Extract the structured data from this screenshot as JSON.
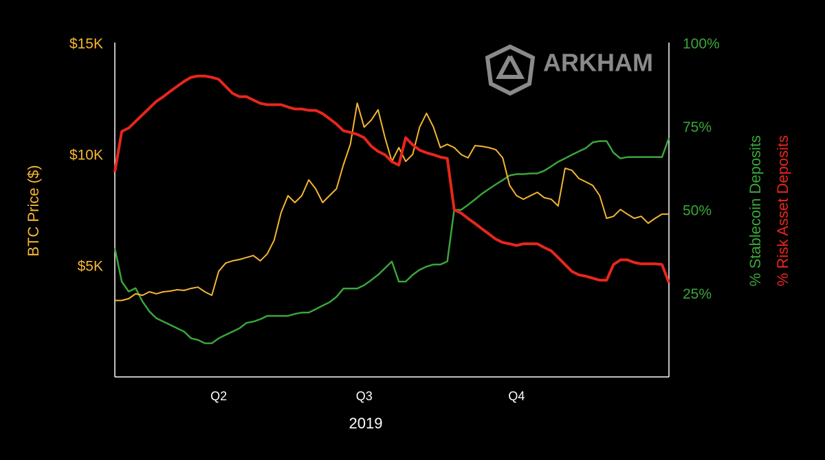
{
  "chart_data": {
    "type": "line",
    "watermark": "ARKHAM",
    "x_label": "2019",
    "categories": [
      null,
      null,
      null,
      null,
      null,
      null,
      null,
      null,
      null,
      null,
      null,
      null,
      null,
      null,
      null,
      "Q2",
      null,
      null,
      null,
      null,
      null,
      null,
      null,
      null,
      null,
      null,
      null,
      null,
      null,
      null,
      null,
      null,
      null,
      null,
      null,
      null,
      "Q3",
      null,
      null,
      null,
      null,
      null,
      null,
      null,
      null,
      null,
      null,
      null,
      null,
      null,
      null,
      null,
      null,
      null,
      null,
      null,
      null,
      null,
      "Q4",
      null,
      null,
      null,
      null,
      null,
      null,
      null,
      null,
      null,
      null,
      null,
      null,
      null,
      null,
      null,
      null,
      null,
      null,
      null,
      null,
      null,
      null
    ],
    "ylim": [
      0,
      15000
    ],
    "yticks": [
      {
        "value": 5000,
        "label": "$5K"
      },
      {
        "value": 10000,
        "label": "$10K"
      },
      {
        "value": 15000,
        "label": "$15K"
      }
    ],
    "y2lim": [
      0,
      100
    ],
    "y2ticks": [
      {
        "value": 25,
        "label": "25%"
      },
      {
        "value": 50,
        "label": "50%"
      },
      {
        "value": 75,
        "label": "75%"
      },
      {
        "value": 100,
        "label": "100%"
      }
    ],
    "grid": false,
    "series": [
      {
        "name": "BTC Price ($)",
        "color": "#f5b731",
        "axis": "y",
        "values": [
          3500,
          3500,
          3580,
          3800,
          3730,
          3890,
          3800,
          3890,
          3920,
          3980,
          3950,
          4040,
          4100,
          3890,
          3730,
          4810,
          5180,
          5280,
          5340,
          5430,
          5520,
          5280,
          5590,
          6200,
          7440,
          8210,
          7900,
          8210,
          8920,
          8520,
          7900,
          8210,
          8520,
          9600,
          10520,
          12370,
          11290,
          11600,
          12070,
          10830,
          9750,
          10370,
          9750,
          10060,
          11290,
          11910,
          11290,
          10370,
          10520,
          10370,
          10060,
          9910,
          10460,
          10430,
          10370,
          10280,
          9910,
          8670,
          8210,
          8050,
          8210,
          8360,
          8120,
          8050,
          7750,
          9440,
          9350,
          8980,
          8830,
          8670,
          8210,
          7190,
          7280,
          7590,
          7380,
          7190,
          7280,
          6970,
          7190,
          7380,
          7380
        ]
      },
      {
        "name": "% Stablecoin Deposits",
        "color": "#3aa63a",
        "axis": "y2",
        "values": [
          39,
          29,
          26,
          27,
          23,
          20,
          18,
          17,
          16,
          15,
          14,
          12,
          11.5,
          10.5,
          10.5,
          12,
          13,
          14,
          15,
          16.6,
          17,
          17.7,
          18.7,
          18.7,
          18.7,
          18.7,
          19.3,
          19.7,
          19.7,
          20.7,
          21.8,
          22.8,
          24.4,
          26.9,
          26.9,
          26.9,
          27.9,
          29.4,
          31,
          33,
          35,
          29,
          29,
          31,
          32.5,
          33.5,
          34.1,
          34.1,
          35,
          50.5,
          50.5,
          52,
          53.6,
          55.3,
          56.7,
          58.1,
          59.4,
          60.8,
          61.2,
          61.2,
          61.4,
          61.4,
          62.2,
          63.5,
          64.9,
          65.9,
          67,
          68,
          69,
          70.7,
          71.1,
          71.1,
          67.6,
          65.9,
          66.3,
          66.3,
          66.3,
          66.3,
          66.3,
          66.3,
          72
        ]
      },
      {
        "name": "% Risk Asset Deposits",
        "color": "#e8261c",
        "axis": "y2",
        "values": [
          61.8,
          74,
          75,
          77,
          79,
          81,
          83,
          84.4,
          86,
          87.5,
          89,
          90.2,
          90.6,
          90.6,
          90.2,
          89.6,
          87.5,
          85.4,
          84.4,
          84.4,
          83.4,
          82.4,
          82,
          82,
          82,
          81.3,
          80.7,
          80.7,
          80.3,
          80.3,
          79.3,
          77.8,
          76.2,
          74.2,
          73.7,
          73.1,
          72.1,
          69.6,
          68,
          67,
          64.9,
          63.9,
          72.1,
          70,
          68.4,
          67.6,
          67,
          66.3,
          65.9,
          50.5,
          49.5,
          47.9,
          46.4,
          44.8,
          43.3,
          41.7,
          40.7,
          40.3,
          39.8,
          40.3,
          40.3,
          40.3,
          39.2,
          38.2,
          36.2,
          34.1,
          32,
          31,
          30.6,
          30,
          29.4,
          29.4,
          34.1,
          35.5,
          35.5,
          34.7,
          34.3,
          34.3,
          34.3,
          34.1,
          28.6
        ]
      }
    ]
  }
}
